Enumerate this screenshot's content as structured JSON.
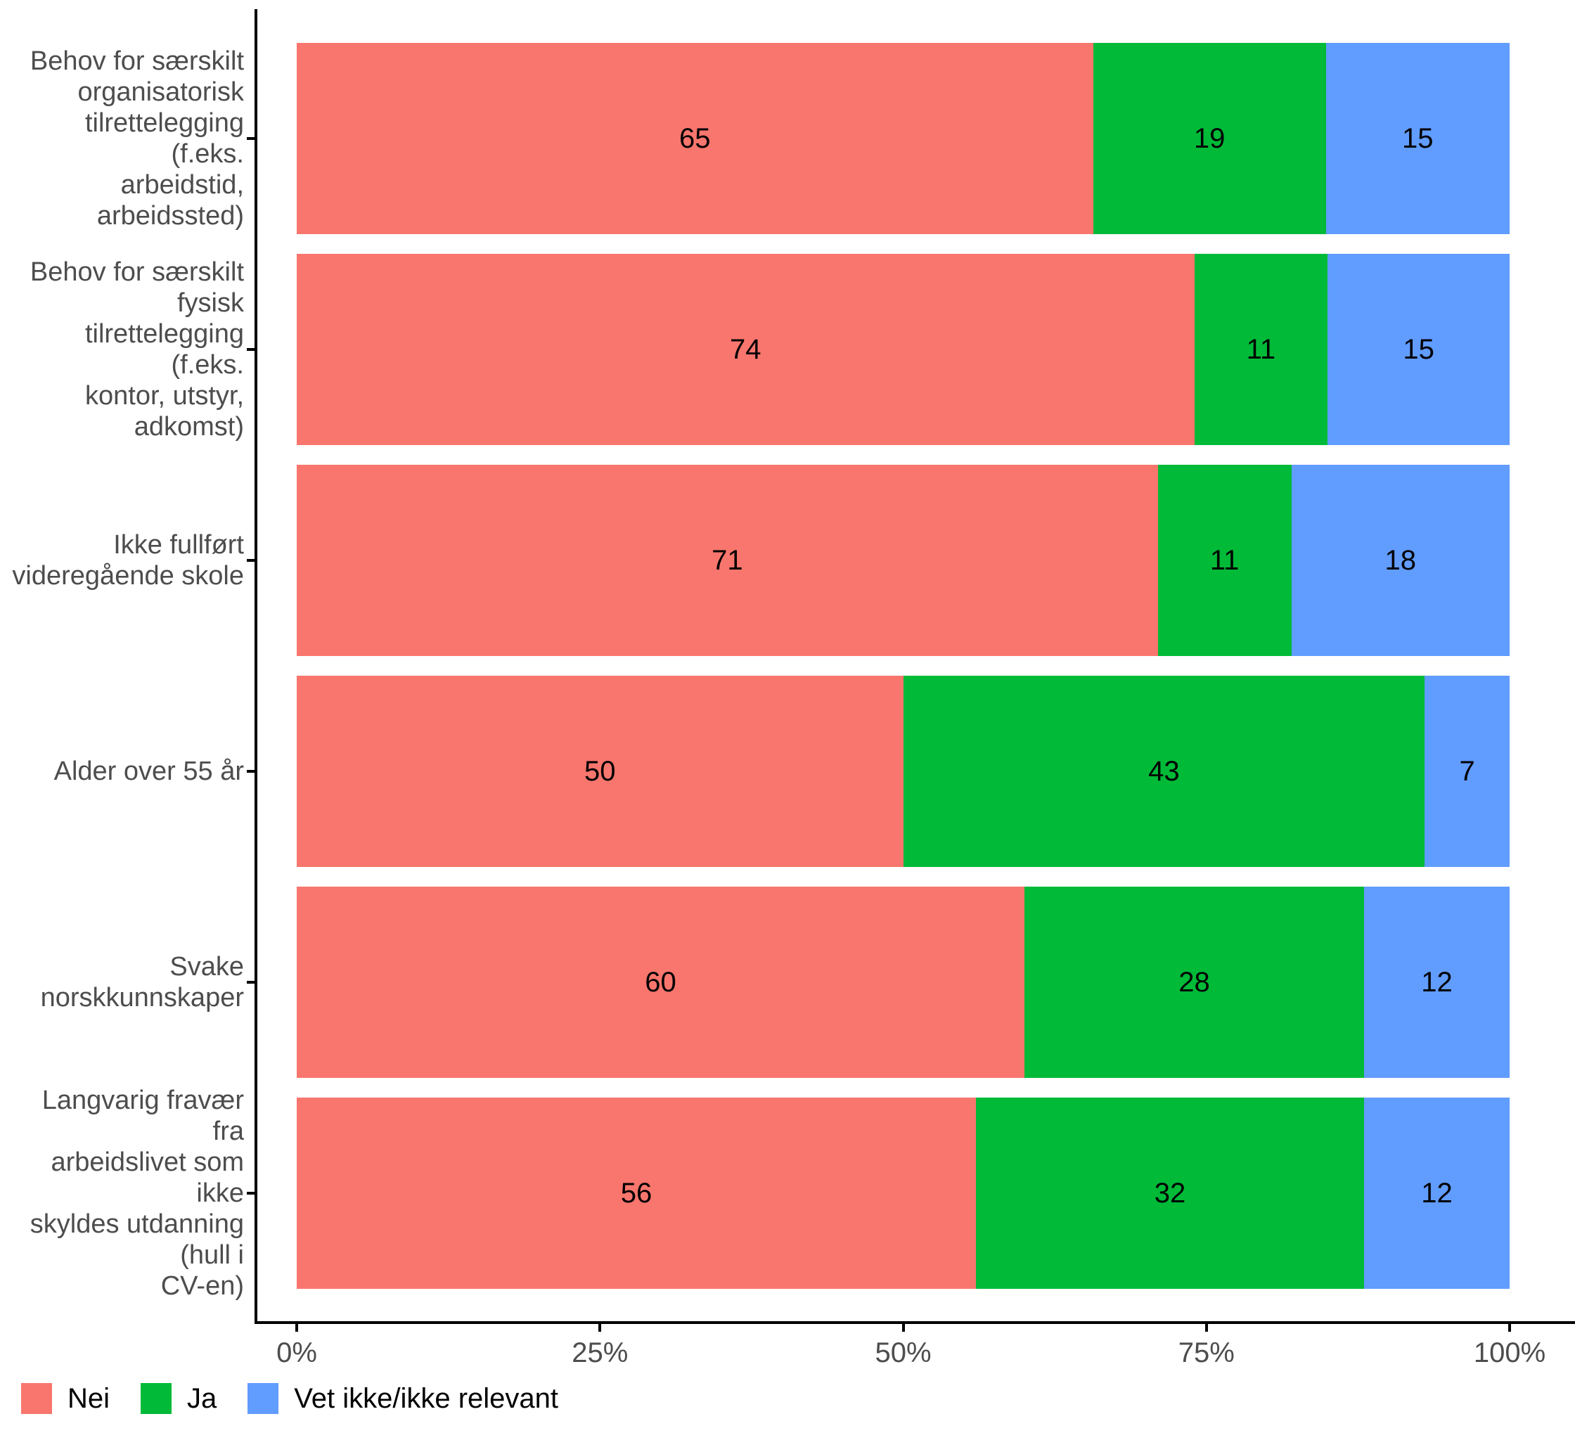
{
  "chart_data": {
    "type": "bar",
    "orientation": "horizontal",
    "stacked": true,
    "title": "",
    "xlabel": "",
    "ylabel": "",
    "grid": false,
    "categories": [
      "Behov for særskilt\norganisatorisk\ntilrettelegging (f.eks.\narbeidstid, arbeidssted)",
      "Behov for særskilt fysisk\ntilrettelegging (f.eks.\nkontor, utstyr, adkomst)",
      "Ikke fullført\nvideregående skole",
      "Alder over 55 år",
      "Svake norskkunnskaper",
      "Langvarig fravær fra\narbeidslivet som ikke\nskyldes utdanning (hull i\nCV-en)"
    ],
    "series": [
      {
        "name": "Nei",
        "color": "#F8766D",
        "values": [
          65,
          74,
          71,
          50,
          60,
          56
        ]
      },
      {
        "name": "Ja",
        "color": "#00BA38",
        "values": [
          19,
          11,
          11,
          43,
          28,
          32
        ]
      },
      {
        "name": "Vet ikke/ikke relevant",
        "color": "#619CFF",
        "values": [
          15,
          15,
          18,
          7,
          12,
          12
        ]
      }
    ],
    "x_axis": {
      "range": [
        0,
        100
      ],
      "tick_labels": [
        "0%",
        "25%",
        "50%",
        "75%",
        "100%"
      ]
    },
    "legend": {
      "position": "bottom-left",
      "entries": [
        "Nei",
        "Ja",
        "Vet ikke/ikke relevant"
      ]
    },
    "colors": {
      "axis_line": "#000000",
      "axis_text": "#4d4d4d",
      "value_label": "#000000",
      "background": "#ffffff"
    }
  }
}
